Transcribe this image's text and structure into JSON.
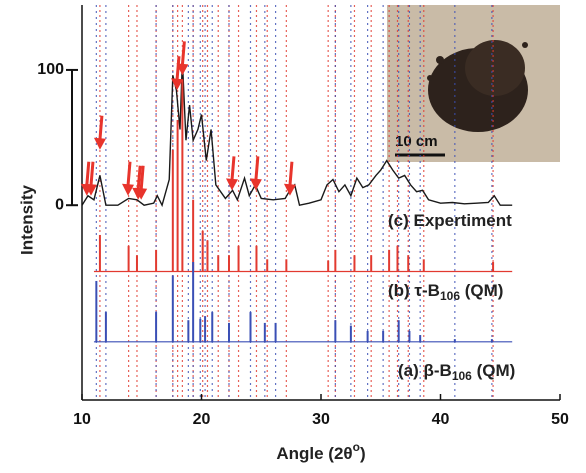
{
  "chart_data": {
    "type": "xrd",
    "xlabel": [
      "Angle (2θ",
      "o",
      ")"
    ],
    "ylabel": "Intensity",
    "xlim": [
      10,
      50
    ],
    "xticks": [
      10,
      20,
      30,
      40,
      50
    ],
    "ylim": [
      -144,
      148
    ],
    "yticks": [
      0,
      100
    ],
    "series": [
      {
        "name": [
          "(c) Expertiment"
        ],
        "color": "#1a1a1a",
        "kind": "line",
        "x": [
          10,
          10.5,
          11,
          11.5,
          12,
          13,
          13.9,
          14.6,
          15.2,
          16,
          16.3,
          16.7,
          17.3,
          17.6,
          17.9,
          18.2,
          18.4,
          18.7,
          19,
          19.3,
          19.7,
          20,
          20.4,
          20.8,
          21.2,
          22,
          22.6,
          23,
          23.6,
          24,
          24.5,
          25,
          26,
          27,
          27.4,
          27.8,
          28.2,
          29,
          30,
          30.5,
          31,
          31.5,
          32,
          32.5,
          33,
          33.5,
          34,
          34.6,
          35,
          35.5,
          36,
          36.5,
          37,
          37.5,
          38,
          38.5,
          39,
          40,
          41,
          42,
          43,
          44,
          44.5,
          45,
          46
        ],
        "values": [
          0,
          7,
          4,
          22,
          0,
          0,
          5,
          4,
          0,
          1.5,
          7,
          0,
          19,
          96,
          85,
          56,
          107,
          48,
          74,
          48,
          56,
          67,
          33,
          56,
          15,
          5,
          11,
          4,
          20,
          7,
          15,
          5,
          4,
          5,
          11,
          15,
          0,
          1.5,
          4,
          15,
          19,
          10,
          15,
          7,
          20,
          13,
          15,
          22,
          26,
          33,
          26,
          20,
          22,
          15,
          10,
          11,
          4,
          1.5,
          2,
          1,
          1.5,
          2,
          7,
          0,
          0
        ]
      },
      {
        "name": [
          "(b) τ-B",
          "106",
          " (QM)"
        ],
        "color": "#e23a30",
        "kind": "sticks",
        "baseline": -49,
        "x": [
          11.5,
          13.9,
          14.6,
          16.2,
          17.6,
          18.0,
          18.4,
          19.3,
          20.1,
          20.5,
          21.4,
          22.3,
          23.1,
          24.6,
          25.5,
          27.1,
          30.6,
          31.2,
          32.8,
          34.2,
          35.7,
          36.4,
          37.3,
          38.6,
          44.4
        ],
        "values": [
          -22,
          -30,
          -37,
          -33,
          41,
          63,
          93,
          4,
          -19,
          -26,
          -37,
          -37,
          -30,
          -30,
          -40,
          -40,
          -41,
          -33,
          -37,
          -37,
          -33,
          -30,
          -37,
          -40,
          -42
        ]
      },
      {
        "name": [
          "(a) β-B",
          "106",
          " (QM)"
        ],
        "color": "#3a4fb5",
        "kind": "sticks",
        "baseline": -101,
        "x": [
          11.2,
          12.0,
          16.2,
          17.6,
          18.9,
          19.3,
          19.9,
          20.3,
          20.9,
          22.3,
          24.1,
          25.3,
          26.2,
          31.2,
          32.5,
          33.9,
          35.2,
          36.5,
          37.4,
          38.3,
          41.2,
          44.3
        ],
        "values": [
          -56,
          -79,
          -79,
          -52,
          -85,
          -42,
          -84,
          -82,
          -79,
          -87,
          -79,
          -87,
          -87,
          -85,
          -89,
          -93,
          -93,
          -85,
          -93,
          -96,
          -99,
          -99
        ]
      }
    ],
    "arrows": {
      "color": "#e8342c",
      "x": [
        10.4,
        10.75,
        11.5,
        13.85,
        14.7,
        14.95,
        17.95,
        18.4,
        22.55,
        24.55,
        27.4
      ],
      "y": [
        7,
        7,
        41,
        7,
        4,
        4,
        85,
        96,
        11,
        11,
        7
      ]
    },
    "inset": {
      "scale_label": "10 cm"
    }
  }
}
